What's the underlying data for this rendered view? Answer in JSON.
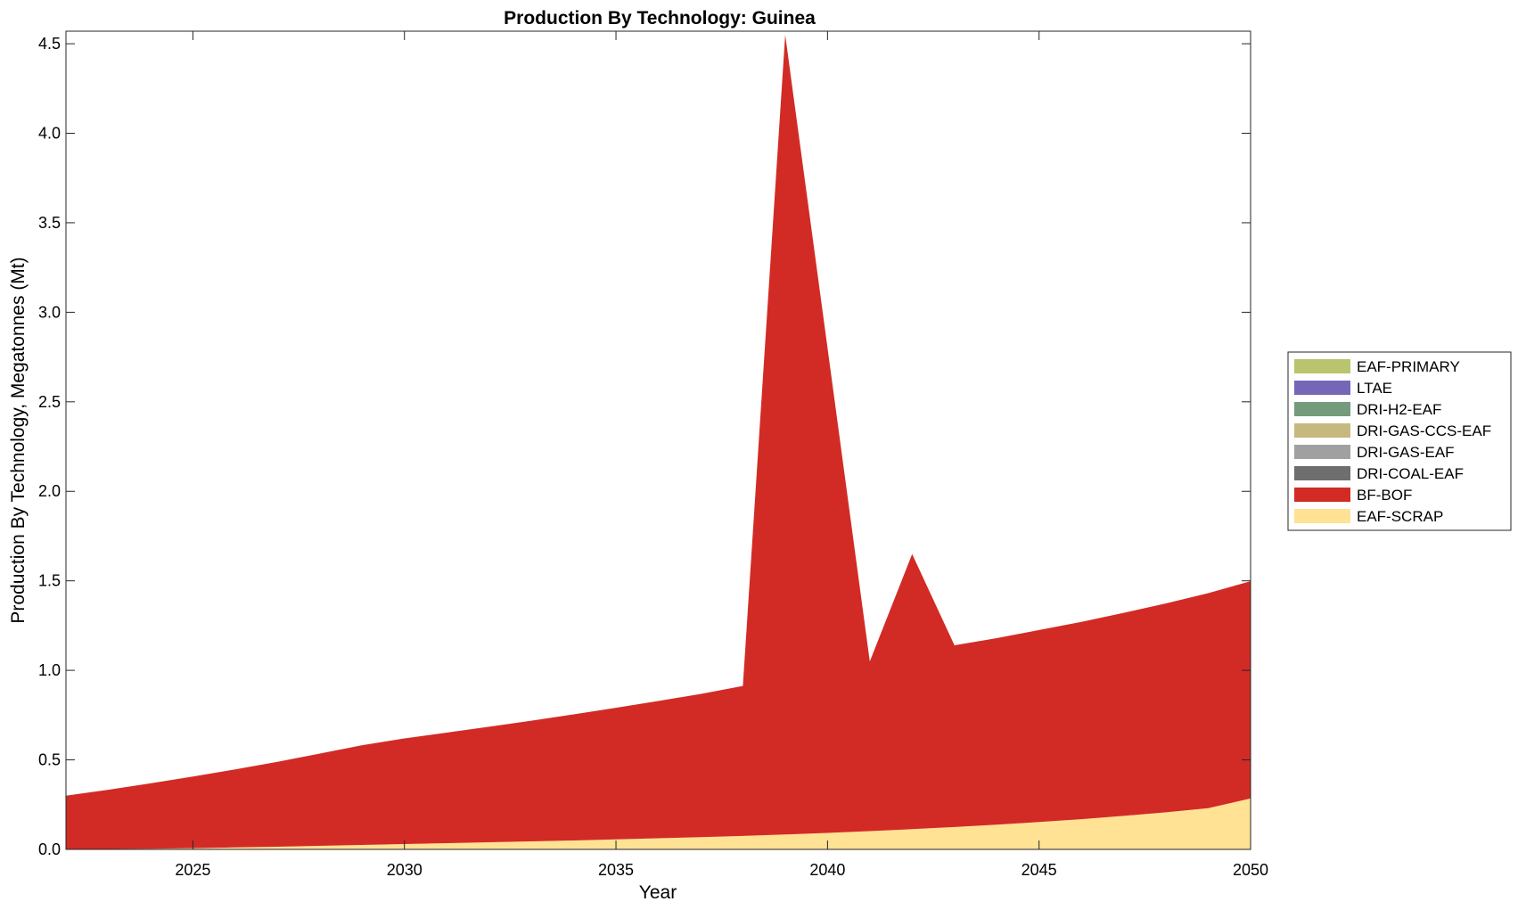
{
  "chart_data": {
    "type": "area",
    "stacked": true,
    "title": "Production By Technology: Guinea",
    "xlabel": "Year",
    "ylabel": "Production By Technology, Megatonnes (Mt)",
    "xlim": [
      2022,
      2050
    ],
    "ylim": [
      0,
      4.57
    ],
    "xticks": [
      "2025",
      "2030",
      "2035",
      "2040",
      "2045",
      "2050"
    ],
    "xtick_values": [
      2025,
      2030,
      2035,
      2040,
      2045,
      2050
    ],
    "yticks": [
      "0.0",
      "0.5",
      "1.0",
      "1.5",
      "2.0",
      "2.5",
      "3.0",
      "3.5",
      "4.0",
      "4.5"
    ],
    "ytick_values": [
      0,
      0.5,
      1.0,
      1.5,
      2.0,
      2.5,
      3.0,
      3.5,
      4.0,
      4.5
    ],
    "grid": false,
    "legend_position": "right",
    "x": [
      2022,
      2023,
      2024,
      2025,
      2026,
      2027,
      2028,
      2029,
      2030,
      2031,
      2032,
      2033,
      2034,
      2035,
      2036,
      2037,
      2038,
      2039,
      2040,
      2041,
      2042,
      2043,
      2044,
      2045,
      2046,
      2047,
      2048,
      2049,
      2050
    ],
    "legend": [
      {
        "name": "EAF-PRIMARY",
        "color": "#bac46d"
      },
      {
        "name": "LTAE",
        "color": "#7666b8"
      },
      {
        "name": "DRI-H2-EAF",
        "color": "#739b7c"
      },
      {
        "name": "DRI-GAS-CCS-EAF",
        "color": "#c6b97f"
      },
      {
        "name": "DRI-GAS-EAF",
        "color": "#a0a0a0"
      },
      {
        "name": "DRI-COAL-EAF",
        "color": "#6e6e6e"
      },
      {
        "name": "BF-BOF",
        "color": "#d22b25"
      },
      {
        "name": "EAF-SCRAP",
        "color": "#ffe294"
      }
    ],
    "series": [
      {
        "name": "EAF-SCRAP",
        "color": "#ffe294",
        "values": [
          0.0,
          0.002,
          0.004,
          0.007,
          0.011,
          0.015,
          0.02,
          0.025,
          0.03,
          0.035,
          0.04,
          0.045,
          0.05,
          0.056,
          0.062,
          0.068,
          0.075,
          0.083,
          0.092,
          0.102,
          0.113,
          0.125,
          0.138,
          0.153,
          0.169,
          0.187,
          0.207,
          0.23,
          0.285
        ]
      },
      {
        "name": "DRI-COAL-EAF",
        "color": "#6e6e6e",
        "values": [
          0,
          0,
          0,
          0,
          0,
          0,
          0,
          0,
          0,
          0,
          0,
          0,
          0,
          0,
          0,
          0,
          0,
          0,
          0,
          0,
          0,
          0,
          0,
          0,
          0,
          0,
          0,
          0,
          0
        ]
      },
      {
        "name": "DRI-GAS-EAF",
        "color": "#a0a0a0",
        "values": [
          0,
          0,
          0,
          0,
          0,
          0,
          0,
          0,
          0,
          0,
          0,
          0,
          0,
          0,
          0,
          0,
          0,
          0,
          0,
          0,
          0,
          0,
          0,
          0,
          0,
          0,
          0,
          0,
          0
        ]
      },
      {
        "name": "DRI-GAS-CCS-EAF",
        "color": "#c6b97f",
        "values": [
          0,
          0,
          0,
          0,
          0,
          0,
          0,
          0,
          0,
          0,
          0,
          0,
          0,
          0,
          0,
          0,
          0,
          0,
          0,
          0,
          0,
          0,
          0,
          0,
          0,
          0,
          0,
          0,
          0
        ]
      },
      {
        "name": "DRI-H2-EAF",
        "color": "#739b7c",
        "values": [
          0,
          0,
          0,
          0,
          0,
          0,
          0,
          0,
          0,
          0,
          0,
          0,
          0,
          0,
          0,
          0,
          0,
          0,
          0,
          0,
          0,
          0,
          0,
          0,
          0,
          0,
          0,
          0,
          0
        ]
      },
      {
        "name": "LTAE",
        "color": "#7666b8",
        "values": [
          0,
          0,
          0,
          0,
          0,
          0,
          0,
          0,
          0,
          0,
          0,
          0,
          0,
          0,
          0,
          0,
          0,
          0,
          0,
          0,
          0,
          0,
          0,
          0,
          0,
          0,
          0,
          0,
          0
        ]
      },
      {
        "name": "EAF-PRIMARY",
        "color": "#bac46d",
        "values": [
          0,
          0,
          0,
          0,
          0,
          0,
          0,
          0,
          0,
          0,
          0,
          0,
          0,
          0,
          0,
          0,
          0,
          0,
          0,
          0,
          0,
          0,
          0,
          0,
          0,
          0,
          0,
          0,
          0
        ]
      },
      {
        "name": "BF-BOF",
        "color": "#d22b25",
        "values": [
          0.3,
          0.331,
          0.365,
          0.4,
          0.436,
          0.474,
          0.515,
          0.557,
          0.59,
          0.617,
          0.645,
          0.674,
          0.704,
          0.735,
          0.767,
          0.8,
          0.838,
          4.467,
          2.708,
          0.948,
          1.537,
          1.015,
          1.042,
          1.072,
          1.102,
          1.134,
          1.167,
          1.201,
          1.213
        ]
      }
    ]
  }
}
